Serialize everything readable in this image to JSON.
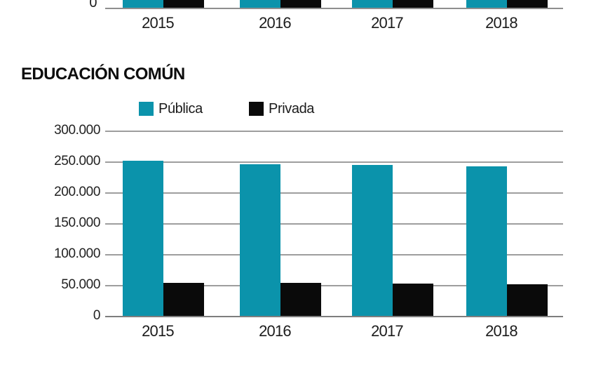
{
  "palette": {
    "teal": "#0b93ab",
    "black": "#0a0a0a",
    "gridline": "#9e9e9e",
    "axis_line": "#8f8f8f",
    "text": "#1a1a1a",
    "background": "#ffffff"
  },
  "chart_data": [
    {
      "type": "bar",
      "truncated": true,
      "categories": [
        "2015",
        "2016",
        "2017",
        "2018"
      ],
      "visible_ytick_label": "0",
      "series": [
        {
          "name": "Pública",
          "color": "#0b93ab"
        },
        {
          "name": "Privada",
          "color": "#0a0a0a"
        }
      ]
    },
    {
      "type": "bar",
      "title": "EDUCACIÓN COMÚN",
      "categories": [
        "2015",
        "2016",
        "2017",
        "2018"
      ],
      "series": [
        {
          "name": "Pública",
          "color": "#0b93ab",
          "values": [
            251000,
            246000,
            244000,
            242000
          ]
        },
        {
          "name": "Privada",
          "color": "#0a0a0a",
          "values": [
            53000,
            53000,
            52000,
            51000
          ]
        }
      ],
      "ylim": [
        0,
        300000
      ],
      "ytick_labels": [
        "300.000",
        "250.000",
        "200.000",
        "150.000",
        "100.000",
        "50.000",
        "0"
      ],
      "grid": true,
      "legend_position": "top"
    }
  ]
}
